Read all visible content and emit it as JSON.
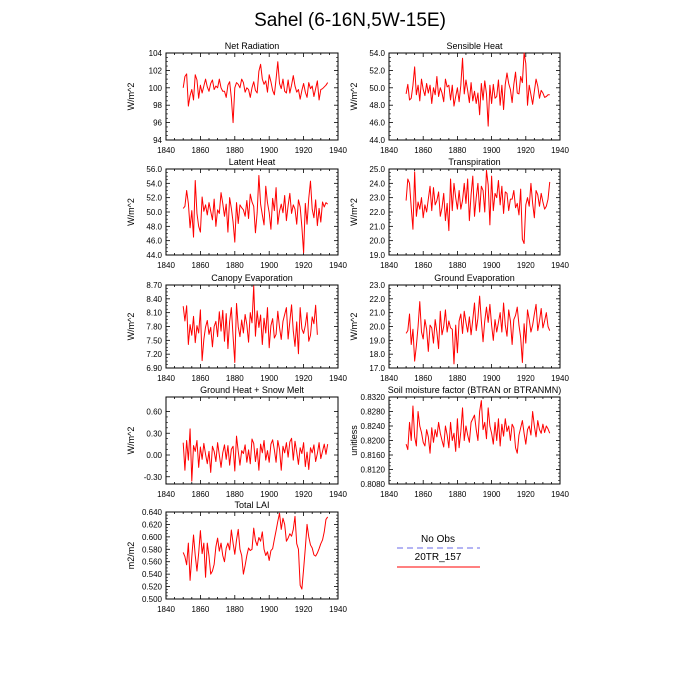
{
  "title": "Sahel (6-16N,5W-15E)",
  "colors": {
    "series": "#ff0000",
    "obs": "#8888ee",
    "axis": "#000000"
  },
  "legend": {
    "items": [
      {
        "label": "No Obs",
        "color": "#8888ee",
        "style": "dashed"
      },
      {
        "label": "20TR_157",
        "color": "#ff0000",
        "style": "solid"
      }
    ]
  },
  "chart_data": [
    {
      "type": "line",
      "title": "Net Radiation",
      "ylabel": "W/m^2",
      "xlim": [
        1840,
        1940
      ],
      "xticks": [
        1840,
        1860,
        1880,
        1900,
        1920,
        1940
      ],
      "ylim": [
        94,
        104
      ],
      "yticks": [
        "94",
        "96",
        "98",
        "100",
        "102",
        "104"
      ],
      "series": [
        {
          "name": "20TR_157",
          "x_start": 1850,
          "values": [
            100.0,
            101.3,
            101.6,
            97.9,
            99.1,
            99.8,
            98.6,
            101.5,
            100.9,
            98.8,
            100.3,
            99.4,
            100.2,
            101.0,
            100.1,
            99.6,
            100.5,
            100.9,
            99.8,
            100.2,
            100.0,
            101.0,
            100.0,
            99.6,
            99.6,
            98.9,
            100.3,
            100.7,
            98.8,
            96.0,
            100.0,
            100.6,
            100.4,
            100.0,
            101.0,
            100.6,
            99.5,
            100.0,
            99.8,
            98.9,
            100.0,
            100.7,
            99.7,
            99.4,
            101.9,
            102.7,
            101.0,
            100.4,
            100.8,
            99.5,
            101.5,
            100.7,
            99.7,
            99.2,
            101.0,
            103.0,
            100.5,
            99.9,
            101.0,
            99.6,
            99.4,
            100.9,
            99.4,
            100.3,
            101.4,
            100.2,
            99.5,
            99.8,
            98.7,
            99.7,
            100.5,
            99.5,
            98.9,
            100.6,
            99.9,
            100.2,
            99.0,
            99.9,
            100.8,
            98.6,
            99.8,
            99.9,
            100.1,
            100.3,
            100.6
          ]
        }
      ]
    },
    {
      "type": "line",
      "title": "Sensible Heat",
      "ylabel": "W/m^2",
      "xlim": [
        1840,
        1940
      ],
      "xticks": [
        1840,
        1860,
        1880,
        1900,
        1920,
        1940
      ],
      "ylim": [
        44,
        54
      ],
      "yticks": [
        "44.0",
        "46.0",
        "48.0",
        "50.0",
        "52.0",
        "54.0"
      ],
      "series": [
        {
          "name": "20TR_157",
          "x_start": 1850,
          "values": [
            49.3,
            50.4,
            48.6,
            48.8,
            50.3,
            52.4,
            49.2,
            50.3,
            48.5,
            51.0,
            49.8,
            49.1,
            50.5,
            49.4,
            50.3,
            48.2,
            50.0,
            49.2,
            51.3,
            49.0,
            50.0,
            49.4,
            48.4,
            51.0,
            50.1,
            50.3,
            48.6,
            50.3,
            47.9,
            49.0,
            50.0,
            48.4,
            50.3,
            53.4,
            49.3,
            50.9,
            49.7,
            48.3,
            50.6,
            48.5,
            49.6,
            48.2,
            49.4,
            46.9,
            50.5,
            48.6,
            50.8,
            49.3,
            45.6,
            50.3,
            48.2,
            50.4,
            48.8,
            49.0,
            50.9,
            48.0,
            50.3,
            47.5,
            50.4,
            51.7,
            50.5,
            49.8,
            48.3,
            50.4,
            51.8,
            49.4,
            49.3,
            51.3,
            50.6,
            54.0,
            52.8,
            48.0,
            50.3,
            49.2,
            48.1,
            49.6,
            51.0,
            50.2,
            48.8,
            49.7,
            49.4,
            48.9,
            49.0,
            49.2,
            49.2
          ]
        }
      ]
    },
    {
      "type": "line",
      "title": "Latent Heat",
      "ylabel": "W/m^2",
      "xlim": [
        1840,
        1940
      ],
      "xticks": [
        1840,
        1860,
        1880,
        1900,
        1920,
        1940
      ],
      "ylim": [
        44,
        56
      ],
      "yticks": [
        "44.0",
        "46.0",
        "48.0",
        "50.0",
        "52.0",
        "54.0",
        "56.0"
      ],
      "series": [
        {
          "name": "20TR_157",
          "x_start": 1850,
          "values": [
            50.5,
            50.8,
            53.0,
            51.2,
            47.8,
            50.2,
            46.5,
            54.4,
            49.8,
            48.0,
            47.2,
            52.1,
            50.1,
            51.0,
            49.6,
            51.3,
            50.1,
            48.9,
            51.8,
            48.0,
            50.3,
            49.8,
            52.7,
            51.2,
            49.4,
            51.1,
            47.2,
            52.0,
            50.5,
            48.6,
            45.8,
            51.3,
            48.4,
            51.0,
            50.6,
            50.3,
            49.4,
            51.6,
            49.1,
            52.5,
            51.4,
            50.8,
            47.1,
            49.9,
            55.1,
            51.1,
            49.6,
            48.2,
            53.6,
            51.3,
            49.9,
            47.6,
            51.9,
            50.2,
            53.4,
            48.3,
            50.1,
            51.1,
            49.9,
            52.3,
            48.8,
            50.9,
            52.6,
            49.8,
            51.0,
            50.4,
            48.3,
            51.7,
            50.7,
            47.9,
            44.3,
            51.2,
            48.3,
            51.9,
            54.3,
            50.4,
            49.2,
            51.7,
            48.1,
            50.5,
            48.6,
            51.4,
            50.7,
            51.3,
            51.1
          ]
        }
      ]
    },
    {
      "type": "line",
      "title": "Transpiration",
      "ylabel": "W/m^2",
      "xlim": [
        1840,
        1940
      ],
      "xticks": [
        1840,
        1860,
        1880,
        1900,
        1920,
        1940
      ],
      "ylim": [
        19,
        25
      ],
      "yticks": [
        "19.0",
        "20.0",
        "21.0",
        "22.0",
        "23.0",
        "24.0",
        "25.0"
      ],
      "series": [
        {
          "name": "20TR_157",
          "x_start": 1850,
          "values": [
            22.8,
            24.3,
            24.0,
            22.3,
            20.8,
            24.8,
            21.7,
            22.7,
            22.2,
            23.0,
            21.6,
            22.5,
            22.0,
            22.9,
            23.8,
            22.1,
            23.7,
            22.5,
            22.8,
            23.4,
            21.7,
            22.3,
            23.3,
            21.4,
            22.6,
            20.7,
            24.3,
            22.1,
            24.0,
            23.0,
            22.2,
            23.5,
            22.2,
            22.8,
            24.0,
            22.6,
            24.3,
            21.4,
            23.2,
            24.5,
            21.7,
            23.0,
            24.0,
            22.0,
            23.8,
            23.5,
            22.0,
            24.9,
            23.9,
            21.1,
            24.5,
            22.1,
            23.3,
            23.0,
            24.2,
            22.5,
            23.8,
            21.9,
            23.4,
            23.3,
            22.1,
            22.9,
            22.9,
            23.5,
            22.3,
            22.6,
            21.8,
            23.6,
            20.1,
            19.8,
            22.5,
            23.0,
            22.4,
            24.0,
            22.6,
            21.6,
            23.5,
            23.2,
            22.4,
            23.3,
            22.7,
            22.2,
            22.4,
            22.9,
            24.1
          ]
        }
      ]
    },
    {
      "type": "line",
      "title": "Canopy Evaporation",
      "ylabel": "W/m^2",
      "xlim": [
        1840,
        1940
      ],
      "xticks": [
        1840,
        1860,
        1880,
        1900,
        1920,
        1940
      ],
      "ylim": [
        6.9,
        8.7
      ],
      "yticks": [
        "6.90",
        "7.20",
        "7.50",
        "7.80",
        "8.10",
        "8.40",
        "8.70"
      ],
      "series": [
        {
          "name": "20TR_157",
          "x_start": 1850,
          "values": [
            8.24,
            7.92,
            8.25,
            7.41,
            7.84,
            7.61,
            8.02,
            7.45,
            7.82,
            7.66,
            8.16,
            7.06,
            7.52,
            7.79,
            7.93,
            7.63,
            7.78,
            7.36,
            7.8,
            7.91,
            7.58,
            8.12,
            7.7,
            8.15,
            7.48,
            8.08,
            7.32,
            7.91,
            8.21,
            7.58,
            7.02,
            8.3,
            7.79,
            7.58,
            7.94,
            7.66,
            8.06,
            7.84,
            7.46,
            8.1,
            7.88,
            8.68,
            7.59,
            8.14,
            7.78,
            8.05,
            7.41,
            7.98,
            7.66,
            8.21,
            7.34,
            7.82,
            7.97,
            7.55,
            7.63,
            8.13,
            7.78,
            7.52,
            7.91,
            8.06,
            8.21,
            7.53,
            7.91,
            8.27,
            7.7,
            7.37,
            7.9,
            7.21,
            8.21,
            7.75,
            7.65,
            7.82,
            8.1,
            7.48,
            7.61,
            8.01,
            7.86,
            8.26,
            7.62
          ]
        }
      ]
    },
    {
      "type": "line",
      "title": "Ground Evaporation",
      "ylabel": "W/m^2",
      "xlim": [
        1840,
        1940
      ],
      "xticks": [
        1840,
        1860,
        1880,
        1900,
        1920,
        1940
      ],
      "ylim": [
        17,
        23
      ],
      "yticks": [
        "17.0",
        "18.0",
        "19.0",
        "20.0",
        "21.0",
        "22.0",
        "23.0"
      ],
      "series": [
        {
          "name": "20TR_157",
          "x_start": 1850,
          "values": [
            19.5,
            19.7,
            20.9,
            18.7,
            19.8,
            17.5,
            18.6,
            20.0,
            21.8,
            19.6,
            19.1,
            20.5,
            19.8,
            18.2,
            20.1,
            19.9,
            18.8,
            20.5,
            19.6,
            18.4,
            21.1,
            19.4,
            20.0,
            21.2,
            19.6,
            20.4,
            19.9,
            19.8,
            17.3,
            20.1,
            18.1,
            20.4,
            20.9,
            19.5,
            21.1,
            20.3,
            19.6,
            20.7,
            19.4,
            20.5,
            21.7,
            19.7,
            20.6,
            22.2,
            20.4,
            18.9,
            20.4,
            21.4,
            20.3,
            21.6,
            20.1,
            19.0,
            20.5,
            19.6,
            20.3,
            21.0,
            19.6,
            21.7,
            20.1,
            19.3,
            21.2,
            20.4,
            18.7,
            20.5,
            20.8,
            21.4,
            20.1,
            19.2,
            17.4,
            20.2,
            18.8,
            21.2,
            20.5,
            19.6,
            20.1,
            20.9,
            21.6,
            19.7,
            20.4,
            21.3,
            19.9,
            20.4,
            21.0,
            20.0,
            19.7
          ]
        }
      ]
    },
    {
      "type": "line",
      "title": "Ground Heat + Snow Melt",
      "ylabel": "W/m^2",
      "xlim": [
        1840,
        1940
      ],
      "xticks": [
        1840,
        1860,
        1880,
        1900,
        1920,
        1940
      ],
      "ylim": [
        -0.4,
        0.8
      ],
      "yticks": [
        "-0.30",
        "0.00",
        "0.30",
        "0.60"
      ],
      "series": [
        {
          "name": "20TR_157",
          "x_start": 1850,
          "values": [
            0.17,
            -0.21,
            0.2,
            -0.07,
            0.36,
            -0.36,
            0.13,
            0.05,
            0.2,
            -0.17,
            0.11,
            -0.06,
            0.16,
            0.01,
            -0.12,
            0.05,
            -0.24,
            0.12,
            0.05,
            -0.09,
            0.17,
            0.0,
            -0.17,
            0.03,
            0.14,
            -0.06,
            0.13,
            -0.14,
            0.08,
            0.12,
            -0.22,
            0.26,
            0.05,
            -0.14,
            0.06,
            0.02,
            0.14,
            -0.1,
            0.07,
            -0.12,
            0.22,
            0.16,
            -0.09,
            0.09,
            -0.21,
            0.15,
            0.03,
            0.2,
            -0.07,
            0.06,
            -0.1,
            0.15,
            0.21,
            0.07,
            -0.1,
            0.2,
            0.08,
            -0.21,
            0.12,
            0.03,
            0.17,
            -0.03,
            0.18,
            0.23,
            -0.07,
            0.19,
            0.04,
            -0.13,
            0.1,
            0.02,
            0.17,
            -0.16,
            0.04,
            -0.2,
            0.1,
            0.03,
            0.14,
            -0.09,
            0.02,
            0.17,
            -0.05,
            0.05,
            0.15,
            0.01,
            0.15
          ]
        }
      ]
    },
    {
      "type": "line",
      "title": "Soil moisture factor (BTRAN or BTRANMN)",
      "ylabel": "unitless",
      "xlim": [
        1840,
        1940
      ],
      "xticks": [
        1840,
        1860,
        1880,
        1900,
        1920,
        1940
      ],
      "ylim": [
        0.808,
        0.832
      ],
      "yticks": [
        "0.8080",
        "0.8120",
        "0.8160",
        "0.8200",
        "0.8240",
        "0.8280",
        "0.8320"
      ],
      "series": [
        {
          "name": "20TR_157",
          "x_start": 1850,
          "values": [
            0.819,
            0.8175,
            0.825,
            0.82,
            0.8295,
            0.821,
            0.8185,
            0.828,
            0.824,
            0.8222,
            0.8195,
            0.8185,
            0.823,
            0.821,
            0.8165,
            0.8235,
            0.8195,
            0.823,
            0.821,
            0.825,
            0.822,
            0.82,
            0.8182,
            0.824,
            0.8215,
            0.818,
            0.825,
            0.82,
            0.822,
            0.817,
            0.826,
            0.818,
            0.8225,
            0.829,
            0.82,
            0.824,
            0.8215,
            0.8195,
            0.825,
            0.826,
            0.827,
            0.823,
            0.82,
            0.828,
            0.831,
            0.823,
            0.825,
            0.8205,
            0.829,
            0.824,
            0.822,
            0.819,
            0.825,
            0.82,
            0.826,
            0.8185,
            0.8245,
            0.8212,
            0.826,
            0.8225,
            0.824,
            0.82,
            0.8245,
            0.8235,
            0.818,
            0.8165,
            0.8215,
            0.8235,
            0.8255,
            0.822,
            0.819,
            0.823,
            0.824,
            0.8215,
            0.828,
            0.824,
            0.821,
            0.8255,
            0.823,
            0.822,
            0.8245,
            0.8222,
            0.824,
            0.8232,
            0.822
          ]
        }
      ]
    },
    {
      "type": "line",
      "title": "Total LAI",
      "ylabel": "m2/m2",
      "xlim": [
        1840,
        1940
      ],
      "xticks": [
        1840,
        1860,
        1880,
        1900,
        1920,
        1940
      ],
      "ylim": [
        0.5,
        0.64
      ],
      "yticks": [
        "0.500",
        "0.520",
        "0.540",
        "0.560",
        "0.580",
        "0.600",
        "0.620",
        "0.640"
      ],
      "series": [
        {
          "name": "20TR_157",
          "x_start": 1850,
          "values": [
            0.575,
            0.568,
            0.555,
            0.59,
            0.53,
            0.568,
            0.603,
            0.57,
            0.545,
            0.574,
            0.61,
            0.573,
            0.59,
            0.535,
            0.59,
            0.569,
            0.54,
            0.545,
            0.556,
            0.584,
            0.598,
            0.577,
            0.59,
            0.57,
            0.56,
            0.582,
            0.59,
            0.579,
            0.611,
            0.59,
            0.572,
            0.595,
            0.612,
            0.58,
            0.57,
            0.54,
            0.554,
            0.57,
            0.582,
            0.578,
            0.58,
            0.614,
            0.594,
            0.586,
            0.599,
            0.593,
            0.608,
            0.58,
            0.57,
            0.576,
            0.562,
            0.578,
            0.581,
            0.596,
            0.61,
            0.625,
            0.638,
            0.612,
            0.63,
            0.62,
            0.593,
            0.598,
            0.605,
            0.601,
            0.612,
            0.633,
            0.589,
            0.58,
            0.522,
            0.516,
            0.548,
            0.582,
            0.62,
            0.6,
            0.587,
            0.582,
            0.571,
            0.569,
            0.574,
            0.581,
            0.589,
            0.595,
            0.608,
            0.628,
            0.632
          ]
        }
      ]
    }
  ]
}
